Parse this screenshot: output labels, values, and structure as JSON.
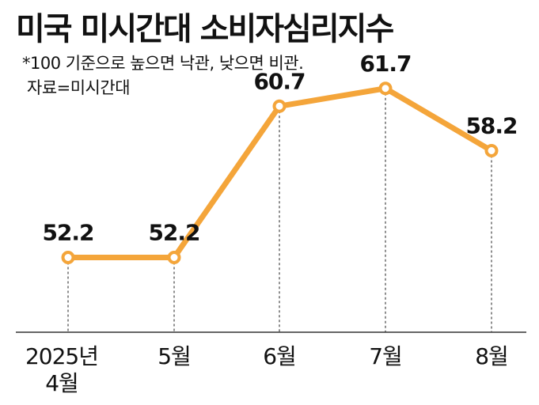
{
  "title": "미국 미시간대 소비자심리지수",
  "note": "*100 기준으로 높으면 낙관, 낮으면 비관.",
  "source": "자료=미시간대",
  "chart_data": {
    "type": "line",
    "categories": [
      "2025년\n4월",
      "5월",
      "6월",
      "7월",
      "8월"
    ],
    "values": [
      52.2,
      52.2,
      60.7,
      61.7,
      58.2
    ],
    "data_labels": [
      "52.2",
      "52.2",
      "60.7",
      "61.7",
      "58.2"
    ],
    "title": "미국 미시간대 소비자심리지수",
    "xlabel": "",
    "ylabel": "",
    "ylim": [
      48,
      64
    ],
    "grid": false,
    "line_color": "#F4A53A",
    "marker_fill": "#ffffff"
  }
}
